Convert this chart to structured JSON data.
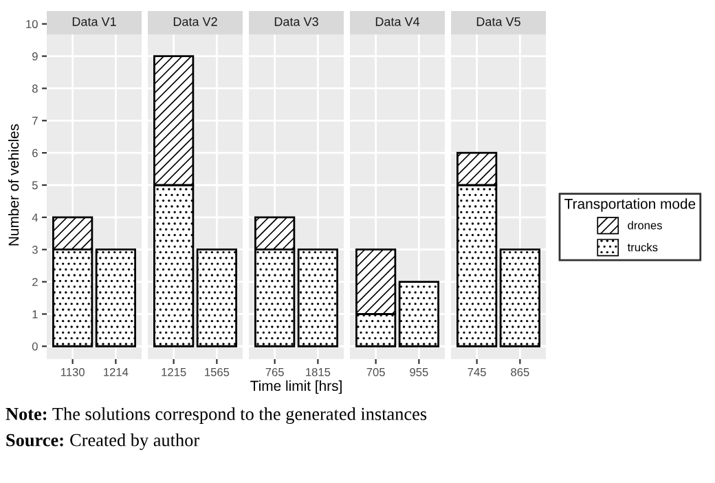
{
  "chart_data": [
    {
      "type": "bar",
      "stacked": true,
      "title": "Data V1",
      "ylabel": "Number of vehicles",
      "legend": "right",
      "legend_title": "Transportation mode",
      "categories": [
        "1130",
        "1214"
      ],
      "series": [
        {
          "name": "trucks",
          "color": "#000000",
          "values": [
            3,
            3
          ]
        },
        {
          "name": "drones",
          "color": "#000000",
          "values": [
            1,
            null
          ]
        }
      ],
      "ylim": [
        -0.4,
        10.4
      ],
      "yticks": [
        0,
        1,
        2,
        3,
        4,
        5,
        6,
        7,
        8,
        9,
        10
      ],
      "grid": true
    },
    {
      "type": "bar",
      "stacked": true,
      "title": "Data V2",
      "categories": [
        "1215",
        "1565"
      ],
      "series": [
        {
          "name": "trucks",
          "color": "#000000",
          "values": [
            5,
            3
          ]
        },
        {
          "name": "drones",
          "color": "#000000",
          "values": [
            4,
            null
          ]
        }
      ],
      "ylim": [
        -0.4,
        10.4
      ],
      "yticks": [
        0,
        1,
        2,
        3,
        4,
        5,
        6,
        7,
        8,
        9,
        10
      ],
      "grid": true,
      "tick_labels": "x"
    },
    {
      "type": "bar",
      "stacked": true,
      "title": "Data V3",
      "xlabel": "Time limit [hrs]",
      "categories": [
        "765",
        "1815"
      ],
      "series": [
        {
          "name": "trucks",
          "color": "#000000",
          "values": [
            3,
            3
          ]
        },
        {
          "name": "drones",
          "color": "#000000",
          "values": [
            1,
            null
          ]
        }
      ],
      "ylim": [
        -0.4,
        10.4
      ],
      "yticks": [
        0,
        1,
        2,
        3,
        4,
        5,
        6,
        7,
        8,
        9,
        10
      ],
      "grid": true,
      "tick_labels": "x"
    },
    {
      "type": "bar",
      "stacked": true,
      "title": "Data V4",
      "categories": [
        "705",
        "955"
      ],
      "series": [
        {
          "name": "trucks",
          "color": "#000000",
          "values": [
            1,
            2
          ]
        },
        {
          "name": "drones",
          "color": "#000000",
          "values": [
            2,
            null
          ]
        }
      ],
      "ylim": [
        -0.4,
        10.4
      ],
      "yticks": [
        0,
        1,
        2,
        3,
        4,
        5,
        6,
        7,
        8,
        9,
        10
      ],
      "grid": true,
      "tick_labels": "x"
    },
    {
      "type": "bar",
      "stacked": true,
      "title": "Data V5",
      "categories": [
        "745",
        "865"
      ],
      "series": [
        {
          "name": "trucks",
          "color": "#000000",
          "values": [
            5,
            3
          ]
        },
        {
          "name": "drones",
          "color": "#000000",
          "values": [
            1,
            null
          ]
        }
      ],
      "ylim": [
        -0.4,
        10.4
      ],
      "yticks": [
        0,
        1,
        2,
        3,
        4,
        5,
        6,
        7,
        8,
        9,
        10
      ],
      "grid": true,
      "tick_labels": "x",
      "annotations": [
        "Note: The solutions correspond to the generated instances",
        "Source: Created by author"
      ]
    }
  ]
}
